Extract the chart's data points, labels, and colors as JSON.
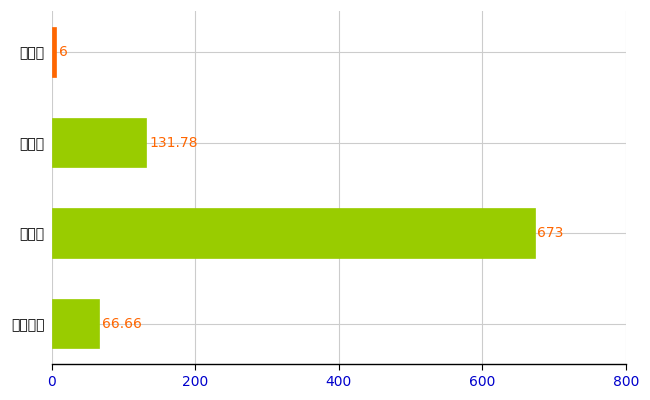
{
  "categories": [
    "太子町",
    "県平均",
    "県最大",
    "全国平均"
  ],
  "values": [
    6,
    131.78,
    673,
    66.66
  ],
  "bar_colors": [
    "#ff6600",
    "#99cc00",
    "#99cc00",
    "#99cc00"
  ],
  "value_labels": [
    "6",
    "131.78",
    "673",
    "66.66"
  ],
  "value_label_color": "#ff6600",
  "xlim": [
    0,
    800
  ],
  "xticks": [
    0,
    200,
    400,
    600,
    800
  ],
  "grid_color": "#cccccc",
  "bg_color": "#ffffff",
  "bar_height": 0.55,
  "label_fontsize": 10,
  "tick_fontsize": 10,
  "xtick_color": "#0000cc"
}
